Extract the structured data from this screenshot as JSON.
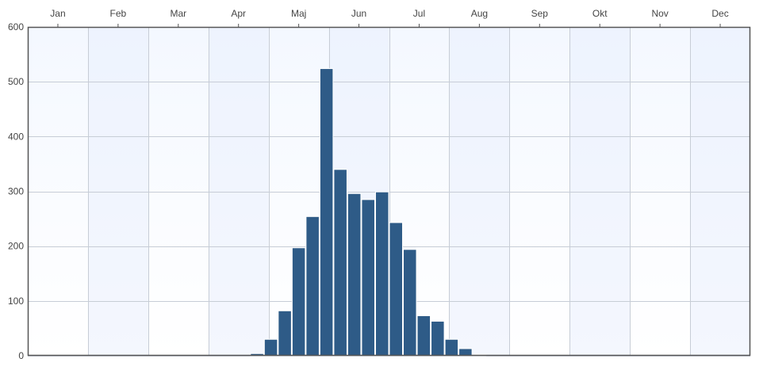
{
  "chart_data": {
    "type": "bar",
    "title": "",
    "xlabel": "",
    "ylabel": "",
    "x_axis": {
      "position": "top",
      "months": [
        "Jan",
        "Feb",
        "Mar",
        "Apr",
        "Maj",
        "Jun",
        "Jul",
        "Aug",
        "Sep",
        "Okt",
        "Nov",
        "Dec"
      ]
    },
    "ylim": [
      0,
      600
    ],
    "y_ticks": [
      0,
      100,
      200,
      300,
      400,
      500,
      600
    ],
    "grid": true,
    "legend": "none",
    "bin_width_weeks": 1,
    "bins": [
      {
        "week": 17,
        "value": 4
      },
      {
        "week": 18,
        "value": 30
      },
      {
        "week": 19,
        "value": 82
      },
      {
        "week": 20,
        "value": 197
      },
      {
        "week": 21,
        "value": 254
      },
      {
        "week": 22,
        "value": 524
      },
      {
        "week": 23,
        "value": 340
      },
      {
        "week": 24,
        "value": 296
      },
      {
        "week": 25,
        "value": 285
      },
      {
        "week": 26,
        "value": 299
      },
      {
        "week": 27,
        "value": 243
      },
      {
        "week": 28,
        "value": 194
      },
      {
        "week": 29,
        "value": 73
      },
      {
        "week": 30,
        "value": 63
      },
      {
        "week": 31,
        "value": 30
      },
      {
        "week": 32,
        "value": 13
      },
      {
        "week": 33,
        "value": 2
      }
    ],
    "colors": {
      "bar": "#2e5b87",
      "bar_edge": "#ffffff",
      "background_top": "#f4f8ff",
      "background_bottom": "#ffffff",
      "alt_month_band": "#e6eefc",
      "grid": "#c7cdd6",
      "frame": "#555555"
    }
  }
}
